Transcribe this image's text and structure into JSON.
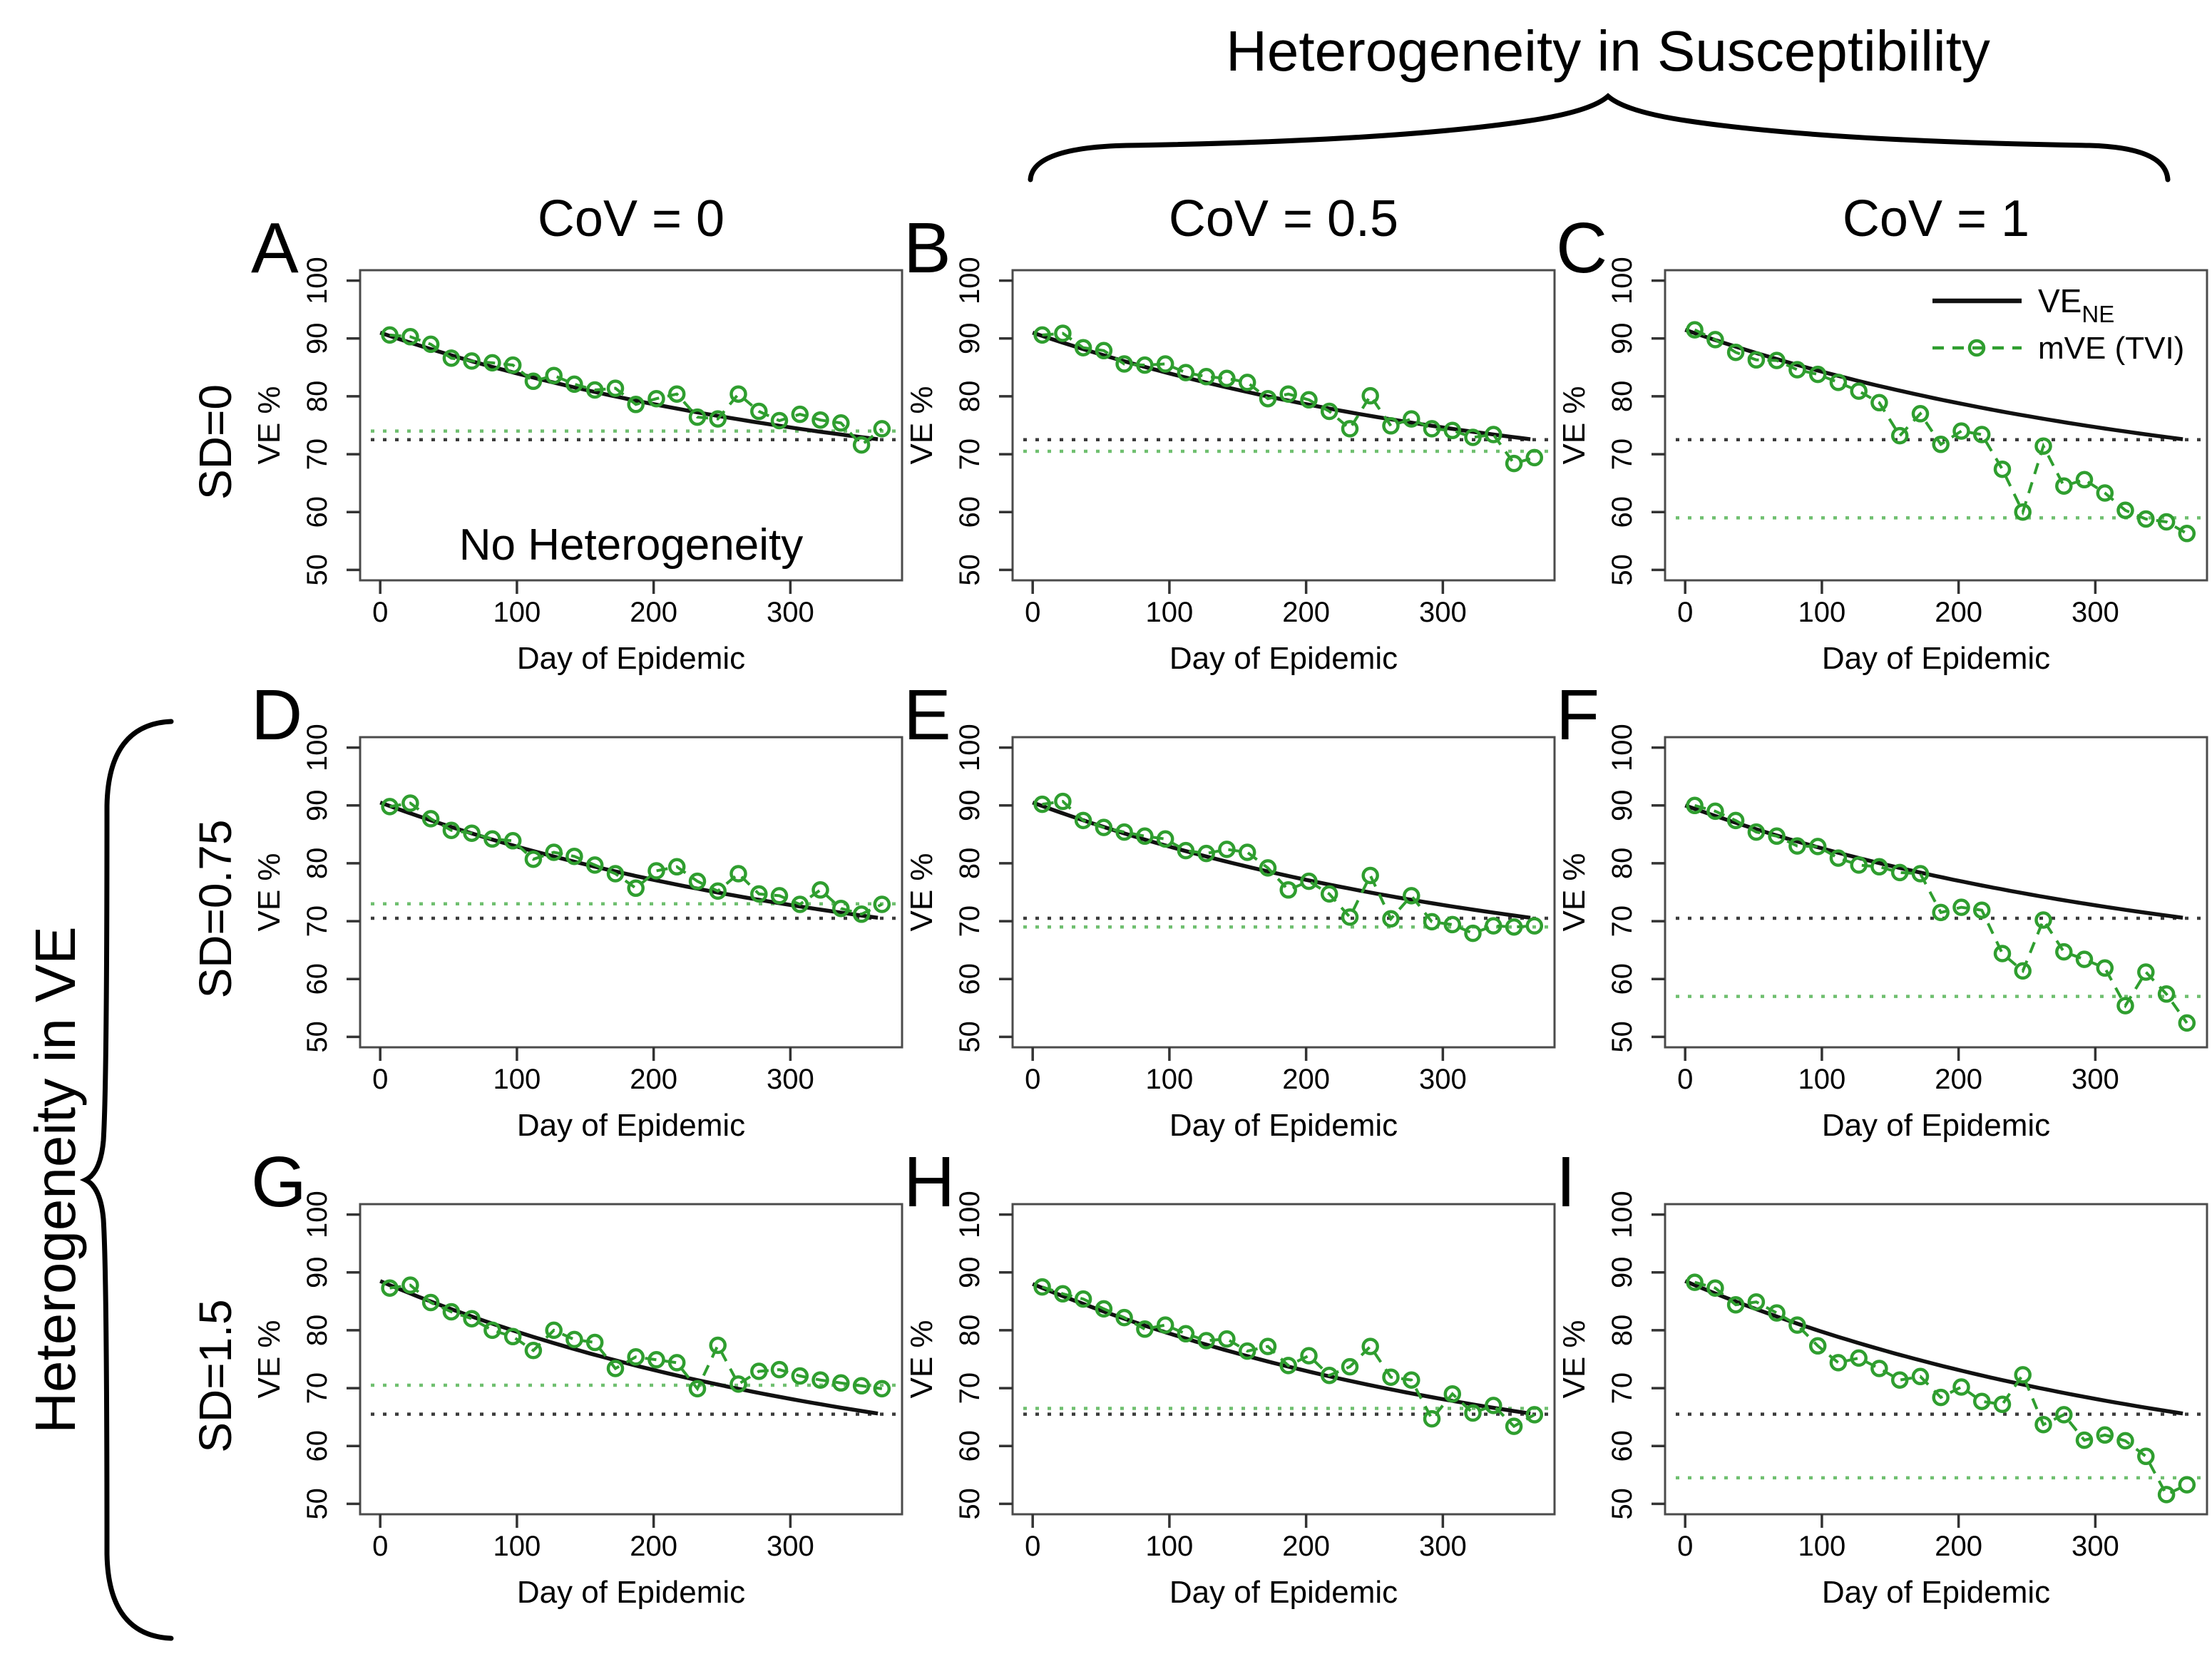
{
  "figure": {
    "top_title": "Heterogeneity in Susceptibility",
    "left_title": "Heterogeneity in VE",
    "columns": [
      "CoV = 0",
      "CoV = 0.5",
      "CoV = 1"
    ],
    "rows": [
      "SD=0",
      "SD=0.75",
      "SD=1.5"
    ],
    "legend": {
      "ve_ne_label": "VE",
      "ve_ne_subscript": "NE",
      "mve_label": "mVE (TVI)"
    },
    "annotation_panel_a": "No Heterogeneity",
    "colors": {
      "ve_ne_line": "#111111",
      "ve_ne_dash": "#3b3b3b",
      "mve_line": "#2f9e2f",
      "mve_dash": "#6fbf6f",
      "box_border": "#4b4b4b"
    }
  },
  "axes": {
    "x_label": "Day of Epidemic",
    "y_label": "VE %",
    "x_ticks": [
      0,
      100,
      200,
      300
    ],
    "y_ticks": [
      50,
      60,
      70,
      80,
      90,
      100
    ],
    "x_range": [
      0,
      367
    ],
    "y_range": [
      50,
      100
    ]
  },
  "chart_data": {
    "type": "line",
    "title": "Heterogeneity in Susceptibility / Heterogeneity in VE panel grid",
    "xlabel": "Day of Epidemic",
    "ylabel": "VE %",
    "xlim": [
      0,
      367
    ],
    "ylim": [
      50,
      100
    ],
    "grid": false,
    "legend_position": "top-right of panel C",
    "series_names": [
      "VE_NE",
      "mVE (TVI)"
    ],
    "days": [
      7,
      22,
      37,
      52,
      67,
      82,
      97,
      112,
      127,
      142,
      157,
      172,
      187,
      202,
      217,
      232,
      247,
      262,
      277,
      292,
      307,
      322,
      337,
      352,
      367
    ],
    "panels": [
      {
        "letter": "A",
        "row": 0,
        "col": 0,
        "row_label": "SD=0",
        "col_label": "CoV = 0",
        "ve_ne": {
          "start": 91.0,
          "end": 72.5
        },
        "ve_ne_final_dash": 72.5,
        "mve_final_dash": 74.0,
        "annotation": "No Heterogeneity",
        "show_legend": false,
        "mve": [
          90.6,
          90.3,
          89.0,
          86.6,
          86.1,
          85.8,
          85.4,
          82.6,
          83.6,
          82.1,
          81.1,
          81.4,
          78.6,
          79.6,
          80.4,
          76.4,
          76.1,
          80.4,
          77.4,
          75.8,
          76.9,
          75.9,
          75.4,
          71.6,
          74.4
        ]
      },
      {
        "letter": "B",
        "row": 0,
        "col": 1,
        "row_label": "SD=0",
        "col_label": "CoV = 0.5",
        "ve_ne": {
          "start": 91.0,
          "end": 72.5
        },
        "ve_ne_final_dash": 72.5,
        "mve_final_dash": 70.5,
        "annotation": "",
        "show_legend": false,
        "mve": [
          90.6,
          90.9,
          88.4,
          87.9,
          85.6,
          85.4,
          85.6,
          84.1,
          83.4,
          83.1,
          82.4,
          79.6,
          80.4,
          79.4,
          77.4,
          74.4,
          80.1,
          74.9,
          76.1,
          74.4,
          74.1,
          72.9,
          73.4,
          68.4,
          69.4
        ]
      },
      {
        "letter": "C",
        "row": 0,
        "col": 2,
        "row_label": "SD=0",
        "col_label": "CoV = 1",
        "ve_ne": {
          "start": 91.5,
          "end": 72.5
        },
        "ve_ne_final_dash": 72.5,
        "mve_final_dash": 59.0,
        "annotation": "",
        "show_legend": true,
        "mve": [
          91.5,
          89.8,
          87.6,
          86.3,
          86.2,
          84.6,
          83.8,
          82.4,
          80.9,
          78.9,
          73.2,
          77.0,
          71.7,
          74.0,
          73.4,
          67.4,
          60.0,
          71.4,
          64.5,
          65.6,
          63.3,
          60.3,
          58.8,
          58.3,
          56.3
        ]
      },
      {
        "letter": "D",
        "row": 1,
        "col": 0,
        "row_label": "SD=0.75",
        "col_label": "CoV = 0",
        "ve_ne": {
          "start": 90.5,
          "end": 70.5
        },
        "ve_ne_final_dash": 70.5,
        "mve_final_dash": 73.0,
        "annotation": "",
        "show_legend": false,
        "mve": [
          89.8,
          90.4,
          87.7,
          85.7,
          85.2,
          84.2,
          83.9,
          80.7,
          81.9,
          81.2,
          79.7,
          78.2,
          75.7,
          78.7,
          79.4,
          76.9,
          75.2,
          78.2,
          74.7,
          74.4,
          72.9,
          75.4,
          72.2,
          71.2,
          72.9
        ]
      },
      {
        "letter": "E",
        "row": 1,
        "col": 1,
        "row_label": "SD=0.75",
        "col_label": "CoV = 0.5",
        "ve_ne": {
          "start": 90.5,
          "end": 70.5
        },
        "ve_ne_final_dash": 70.5,
        "mve_final_dash": 69.0,
        "annotation": "",
        "show_legend": false,
        "mve": [
          90.2,
          90.7,
          87.4,
          86.2,
          85.4,
          84.7,
          84.2,
          82.2,
          81.7,
          82.4,
          81.9,
          79.2,
          75.4,
          76.9,
          74.7,
          70.7,
          77.9,
          70.4,
          74.4,
          69.9,
          69.4,
          67.9,
          69.2,
          69.0,
          69.2
        ]
      },
      {
        "letter": "F",
        "row": 1,
        "col": 2,
        "row_label": "SD=0.75",
        "col_label": "CoV = 1",
        "ve_ne": {
          "start": 90.0,
          "end": 70.5
        },
        "ve_ne_final_dash": 70.5,
        "mve_final_dash": 57.0,
        "annotation": "",
        "show_legend": false,
        "mve": [
          90.0,
          89.0,
          87.4,
          85.4,
          84.7,
          83.0,
          82.9,
          80.9,
          79.7,
          79.4,
          78.4,
          78.2,
          71.5,
          72.4,
          71.9,
          64.4,
          61.4,
          70.2,
          64.7,
          63.4,
          61.9,
          55.4,
          61.2,
          57.4,
          52.4
        ]
      },
      {
        "letter": "G",
        "row": 2,
        "col": 0,
        "row_label": "SD=1.5",
        "col_label": "CoV = 0",
        "ve_ne": {
          "start": 88.5,
          "end": 65.5
        },
        "ve_ne_final_dash": 65.5,
        "mve_final_dash": 70.5,
        "annotation": "",
        "show_legend": false,
        "mve": [
          87.3,
          87.8,
          84.8,
          83.2,
          82.0,
          80.0,
          78.9,
          76.5,
          80.0,
          78.4,
          77.9,
          73.4,
          75.4,
          74.9,
          74.4,
          69.9,
          77.4,
          70.7,
          72.9,
          73.2,
          72.1,
          71.4,
          70.9,
          70.4,
          69.9
        ]
      },
      {
        "letter": "H",
        "row": 2,
        "col": 1,
        "row_label": "SD=1.5",
        "col_label": "CoV = 0.5",
        "ve_ne": {
          "start": 88.0,
          "end": 65.5
        },
        "ve_ne_final_dash": 65.5,
        "mve_final_dash": 66.5,
        "annotation": "",
        "show_legend": false,
        "mve": [
          87.5,
          86.3,
          85.4,
          83.7,
          82.2,
          80.2,
          80.9,
          79.4,
          78.2,
          78.5,
          76.4,
          77.2,
          73.9,
          75.6,
          72.2,
          73.7,
          77.2,
          71.9,
          71.4,
          64.7,
          69.0,
          65.7,
          67.0,
          63.4,
          65.4
        ]
      },
      {
        "letter": "I",
        "row": 2,
        "col": 2,
        "row_label": "SD=1.5",
        "col_label": "CoV = 1",
        "ve_ne": {
          "start": 88.5,
          "end": 65.5
        },
        "ve_ne_final_dash": 65.5,
        "mve_final_dash": 54.5,
        "annotation": "",
        "show_legend": false,
        "mve": [
          88.3,
          87.3,
          84.4,
          84.9,
          83.0,
          80.9,
          77.3,
          74.4,
          75.2,
          73.4,
          71.4,
          72.0,
          68.4,
          70.2,
          67.7,
          67.2,
          72.3,
          63.7,
          65.4,
          61.0,
          61.9,
          60.9,
          58.2,
          51.6,
          53.3
        ]
      }
    ]
  }
}
